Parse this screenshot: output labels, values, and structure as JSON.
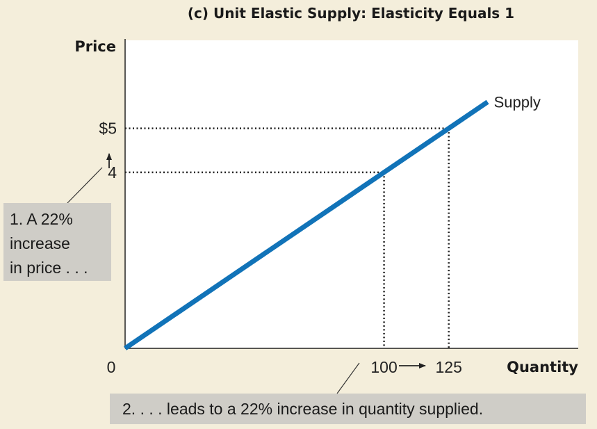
{
  "chart_data": {
    "type": "line",
    "title": "(c) Unit Elastic Supply: Elasticity Equals 1",
    "xlabel": "Quantity",
    "ylabel": "Price",
    "origin_label": "0",
    "series": [
      {
        "name": "Supply",
        "x": [
          0,
          125
        ],
        "y": [
          0,
          5
        ],
        "extends_to": {
          "x": 140,
          "y": 5.6
        },
        "color": "#1173b8"
      }
    ],
    "highlighted_points": [
      {
        "x": 100,
        "y": 4
      },
      {
        "x": 125,
        "y": 5
      }
    ],
    "x_ticks": [
      {
        "value": 100,
        "label": "100"
      },
      {
        "value": 125,
        "label": "125"
      }
    ],
    "y_ticks": [
      {
        "value": 5,
        "label": "$5"
      },
      {
        "value": 4,
        "label": "4"
      }
    ],
    "xlim": [
      0,
      175
    ],
    "ylim": [
      0,
      7
    ],
    "grid": false,
    "dotted_guides": true,
    "annotations": [
      {
        "id": "price",
        "lines": [
          "1. A 22%",
          "increase",
          "in price . . ."
        ]
      },
      {
        "id": "quantity",
        "text": "2.  . . . leads to a 22% increase in quantity supplied."
      }
    ]
  },
  "colors": {
    "background": "#f4eedb",
    "plot_area": "#ffffff",
    "supply_line": "#1173b8",
    "annotation_box": "#cfcdc7"
  }
}
